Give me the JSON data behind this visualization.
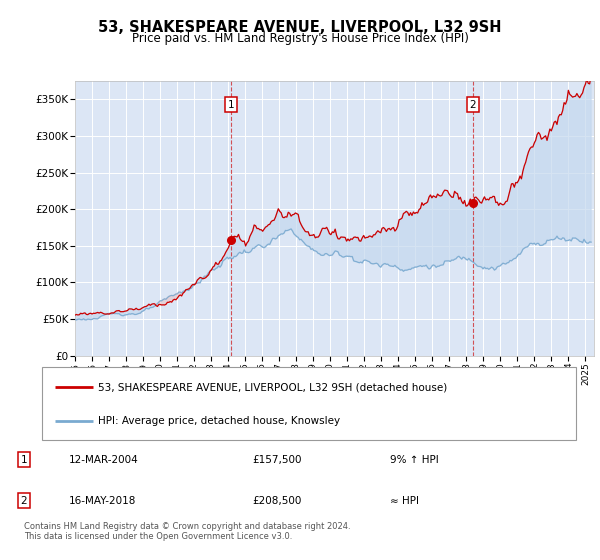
{
  "title": "53, SHAKESPEARE AVENUE, LIVERPOOL, L32 9SH",
  "subtitle": "Price paid vs. HM Land Registry's House Price Index (HPI)",
  "ylabel_ticks": [
    "£0",
    "£50K",
    "£100K",
    "£150K",
    "£200K",
    "£250K",
    "£300K",
    "£350K"
  ],
  "ytick_values": [
    0,
    50000,
    100000,
    150000,
    200000,
    250000,
    300000,
    350000
  ],
  "ylim": [
    0,
    375000
  ],
  "xlim_start": 1995.0,
  "xlim_end": 2025.5,
  "plot_bg_color": "#dce6f5",
  "grid_color": "#ffffff",
  "hpi_color": "#7aaad0",
  "fill_color": "#c5d8ee",
  "price_color": "#cc0000",
  "marker1_x": 2004.19,
  "marker2_x": 2018.37,
  "marker1_price": 157500,
  "marker2_price": 208500,
  "legend_label1": "53, SHAKESPEARE AVENUE, LIVERPOOL, L32 9SH (detached house)",
  "legend_label2": "HPI: Average price, detached house, Knowsley",
  "note1_num": "1",
  "note1_date": "12-MAR-2004",
  "note1_price": "£157,500",
  "note1_hpi": "9% ↑ HPI",
  "note2_num": "2",
  "note2_date": "16-MAY-2018",
  "note2_price": "£208,500",
  "note2_hpi": "≈ HPI",
  "footer": "Contains HM Land Registry data © Crown copyright and database right 2024.\nThis data is licensed under the Open Government Licence v3.0.",
  "xtick_years": [
    1995,
    1996,
    1997,
    1998,
    1999,
    2000,
    2001,
    2002,
    2003,
    2004,
    2005,
    2006,
    2007,
    2008,
    2009,
    2010,
    2011,
    2012,
    2013,
    2014,
    2015,
    2016,
    2017,
    2018,
    2019,
    2020,
    2021,
    2022,
    2023,
    2024,
    2025
  ]
}
